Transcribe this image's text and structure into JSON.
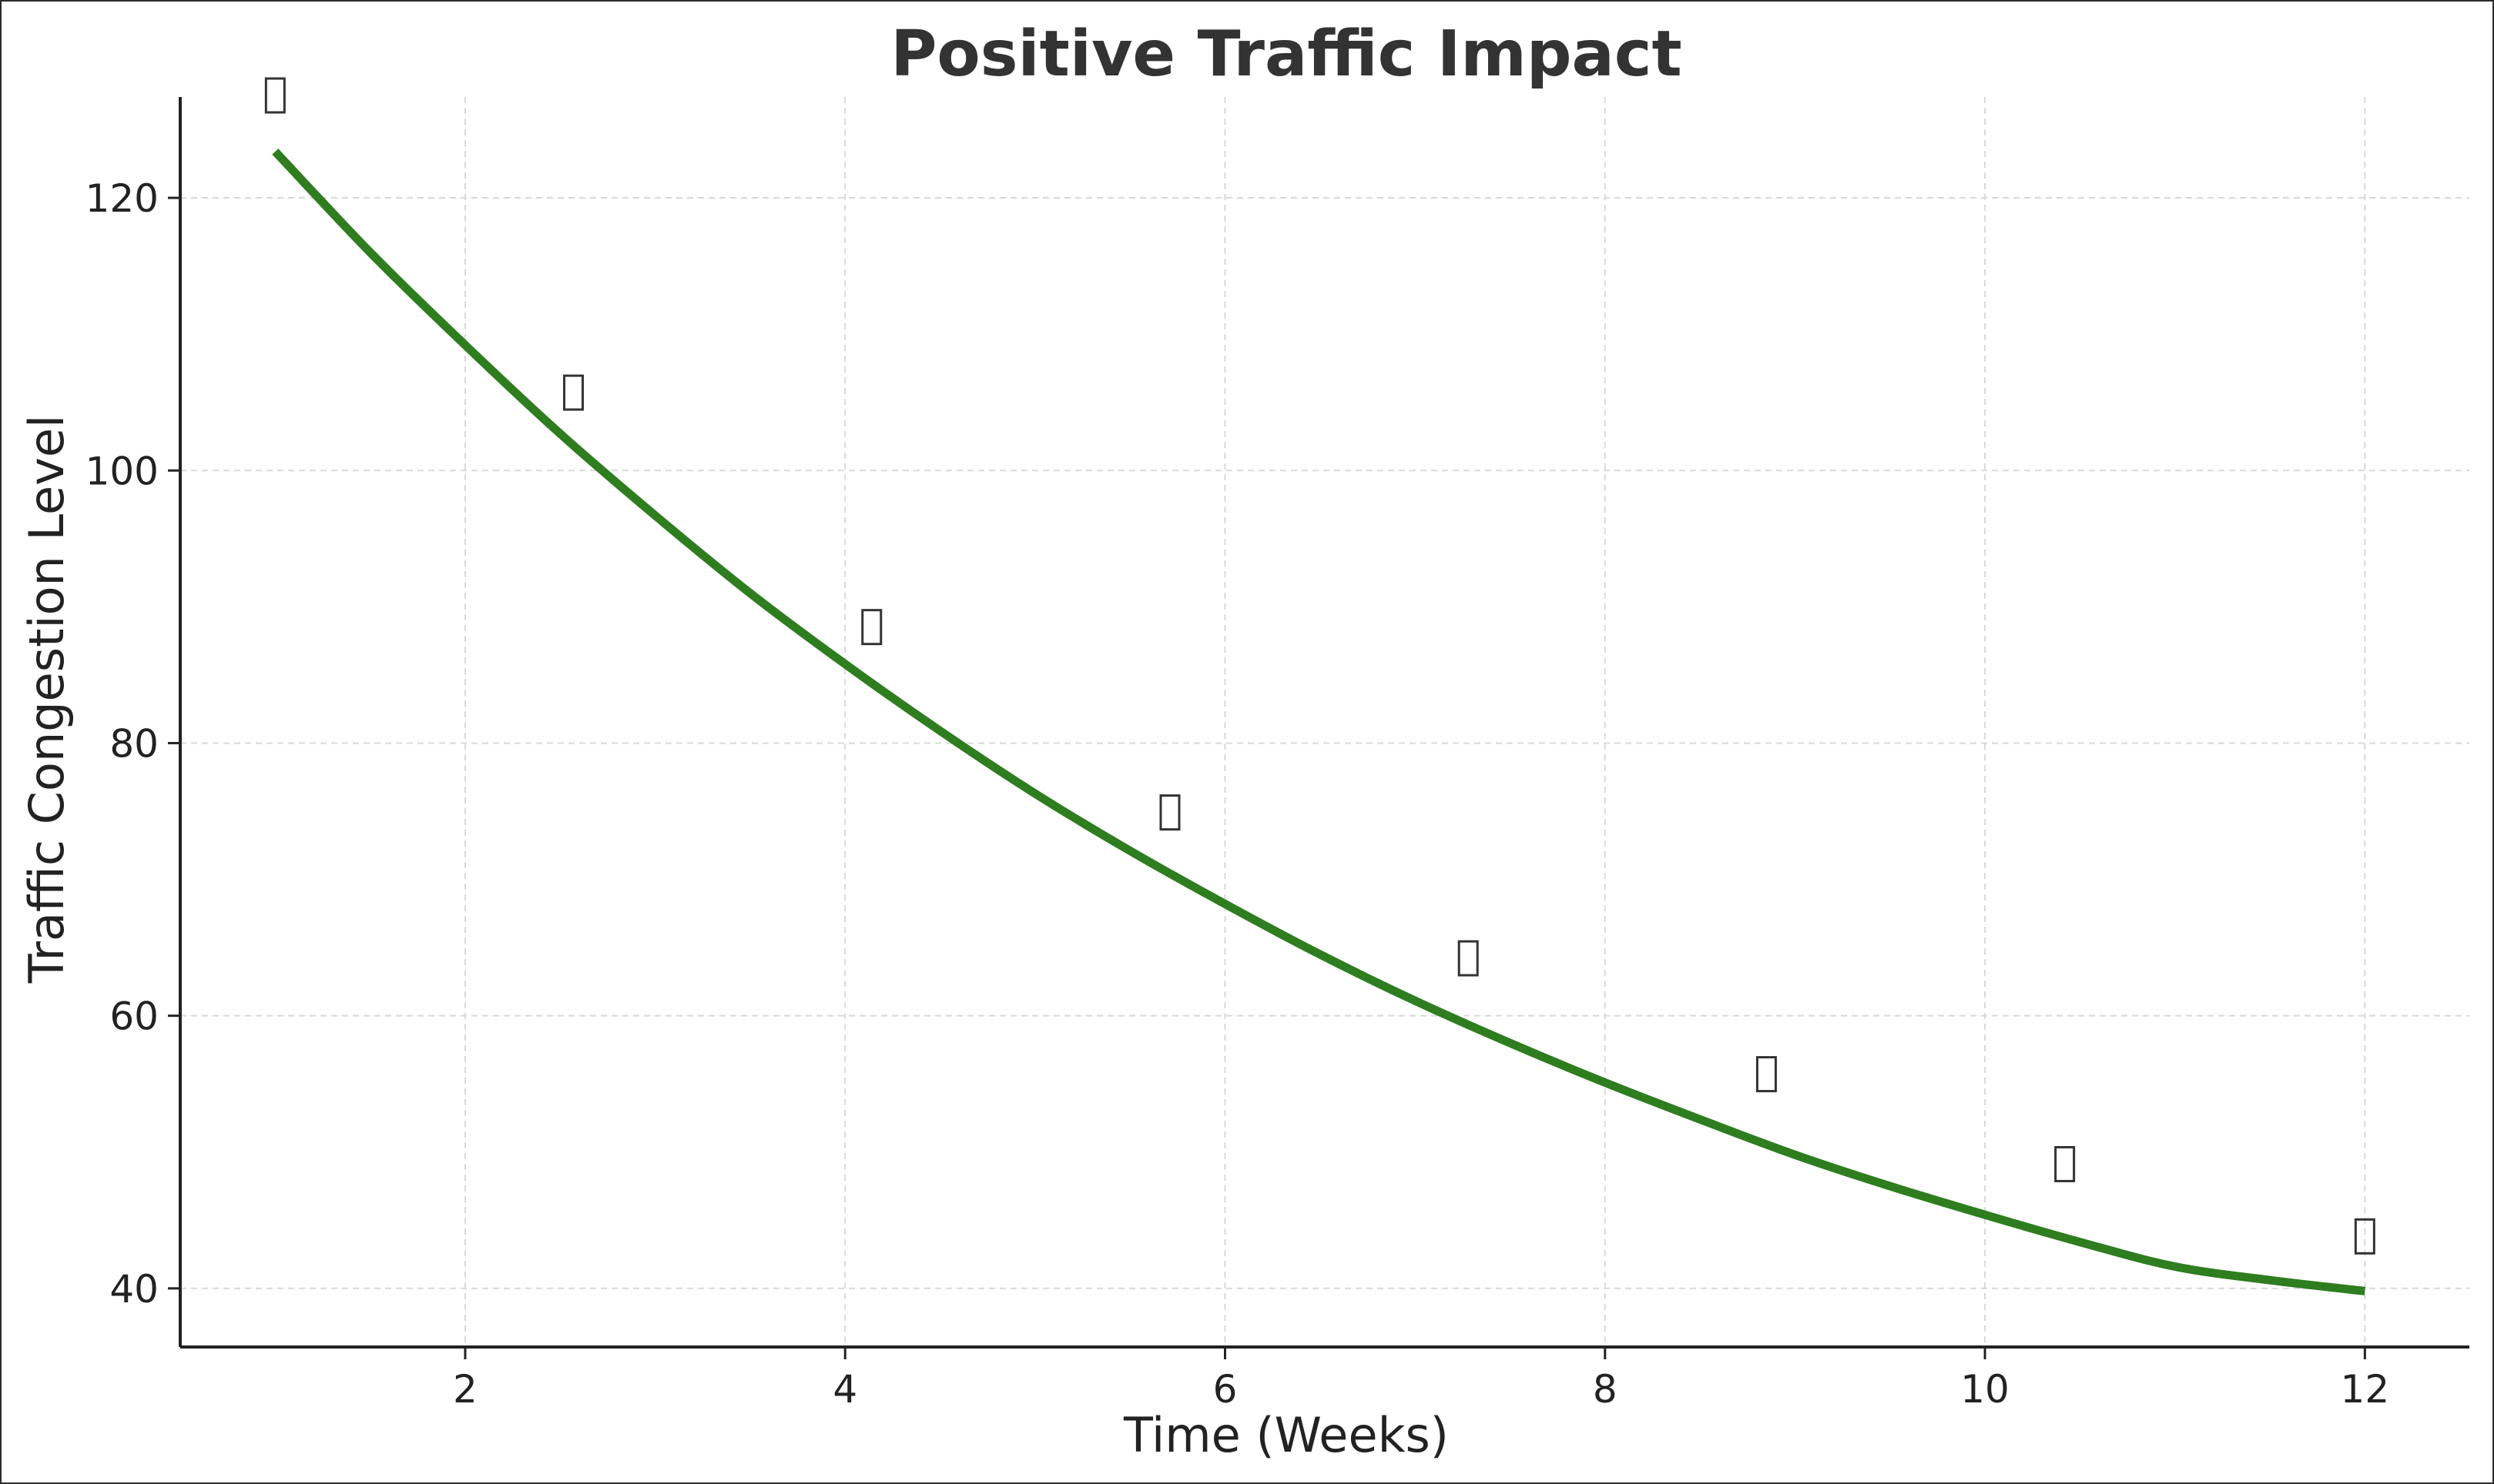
{
  "chart_data": {
    "type": "line",
    "title": "Positive Traffic Impact",
    "xlabel": "Time (Weeks)",
    "ylabel": "Traffic Congestion Level",
    "xlim": [
      0.5,
      12.55
    ],
    "ylim": [
      35.7,
      127.4
    ],
    "x_ticks": [
      2,
      4,
      6,
      8,
      10,
      12
    ],
    "y_ticks": [
      40,
      60,
      80,
      100,
      120
    ],
    "grid": true,
    "series": [
      {
        "x": [
          1,
          1.5,
          2,
          2.5,
          3,
          3.5,
          4,
          4.5,
          5,
          5.5,
          6,
          6.5,
          7,
          7.5,
          8,
          8.5,
          9,
          9.5,
          10,
          10.5,
          11,
          11.5,
          12
        ],
        "values": [
          123.4,
          116.0,
          109.2,
          102.7,
          96.7,
          91.0,
          85.8,
          80.9,
          76.3,
          72.1,
          68.2,
          64.5,
          61.1,
          58.0,
          55.1,
          52.4,
          49.8,
          47.5,
          45.4,
          43.4,
          41.6,
          40.6,
          39.8
        ],
        "color": "#2e7d1f"
      }
    ],
    "annotations": {
      "x": [
        1.0,
        2.57,
        4.14,
        5.71,
        7.28,
        8.85,
        10.42,
        12.0
      ],
      "y": [
        127.4,
        105.6,
        88.4,
        74.8,
        64.1,
        55.6,
        49.0,
        43.7
      ],
      "glyph": "▯",
      "color": "#333333"
    }
  }
}
